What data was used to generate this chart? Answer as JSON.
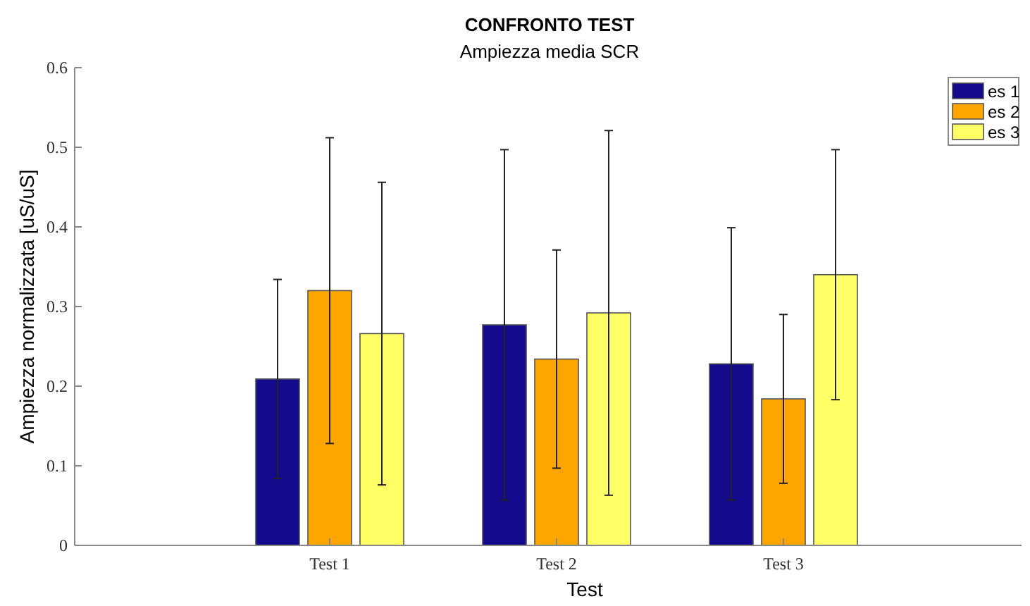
{
  "chart_data": {
    "type": "bar",
    "title": "CONFRONTO TEST",
    "subtitle": "Ampiezza media SCR",
    "xlabel": "Test",
    "ylabel": "Ampiezza normalizzata [uS/uS]",
    "categories": [
      "Test 1",
      "Test 2",
      "Test 3"
    ],
    "series": [
      {
        "name": "es 1",
        "color": "#140a8c",
        "values": [
          0.209,
          0.277,
          0.228
        ],
        "errors": [
          0.125,
          0.22,
          0.171
        ]
      },
      {
        "name": "es 2",
        "color": "#ffa500",
        "values": [
          0.32,
          0.234,
          0.184
        ],
        "errors": [
          0.192,
          0.137,
          0.106
        ]
      },
      {
        "name": "es 3",
        "color": "#ffff66",
        "values": [
          0.266,
          0.292,
          0.34
        ],
        "errors": [
          0.19,
          0.229,
          0.157
        ]
      }
    ],
    "ylim": [
      0,
      0.6
    ],
    "yticks": [
      0,
      0.1,
      0.2,
      0.3,
      0.4,
      0.5,
      0.6
    ],
    "legend": "top right",
    "grid": false
  }
}
